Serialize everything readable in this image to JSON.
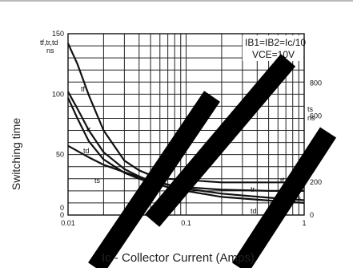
{
  "chart_data": {
    "type": "line",
    "y_axis_title": "Switching time",
    "x_axis_title": "Ic - Collector Current (Amps)",
    "left_axis_unit_label": [
      "tf,tr,td",
      "ns"
    ],
    "right_axis_unit_label": [
      "ts",
      "ns"
    ],
    "conditions": [
      "IB1=IB2=Ic/10",
      "VCE=10V"
    ],
    "x_scale": "log",
    "xlim": [
      0.01,
      1
    ],
    "x_ticks": [
      "0.01",
      "0.1",
      "1"
    ],
    "ylim_left": [
      0,
      150
    ],
    "y_ticks_left": [
      "150",
      "100",
      "50",
      "0"
    ],
    "ylim_right": [
      0,
      1100
    ],
    "y_ticks_right": [
      "800",
      "600",
      "400",
      "200",
      "0"
    ],
    "grid": true,
    "series": [
      {
        "name": "tf",
        "axis": "left",
        "x": [
          0.01,
          0.012,
          0.015,
          0.02,
          0.03,
          0.04,
          0.05,
          0.07,
          0.1,
          0.2,
          0.5,
          1.0
        ],
        "y": [
          142,
          125,
          99,
          70,
          45,
          37,
          33,
          30,
          29,
          27,
          27,
          27
        ]
      },
      {
        "name": "tr",
        "axis": "left",
        "x": [
          0.01,
          0.012,
          0.015,
          0.02,
          0.03,
          0.04,
          0.05,
          0.07,
          0.1,
          0.2,
          0.5,
          1.0
        ],
        "y": [
          102,
          88,
          70,
          52,
          38,
          32,
          28,
          25,
          23,
          21,
          20,
          20
        ]
      },
      {
        "name": "td",
        "axis": "left",
        "x": [
          0.01,
          0.012,
          0.015,
          0.02,
          0.03,
          0.04,
          0.05,
          0.07,
          0.1,
          0.2,
          0.5,
          1.0
        ],
        "y": [
          97,
          80,
          61,
          46,
          35,
          30,
          27,
          23,
          20,
          15,
          12,
          10
        ]
      },
      {
        "name": "ts",
        "axis": "right",
        "x": [
          0.01,
          0.015,
          0.02,
          0.03,
          0.04,
          0.05,
          0.07,
          0.1,
          0.2,
          0.5,
          1.0
        ],
        "y": [
          420,
          350,
          305,
          260,
          230,
          210,
          185,
          160,
          130,
          105,
          90
        ]
      }
    ]
  }
}
